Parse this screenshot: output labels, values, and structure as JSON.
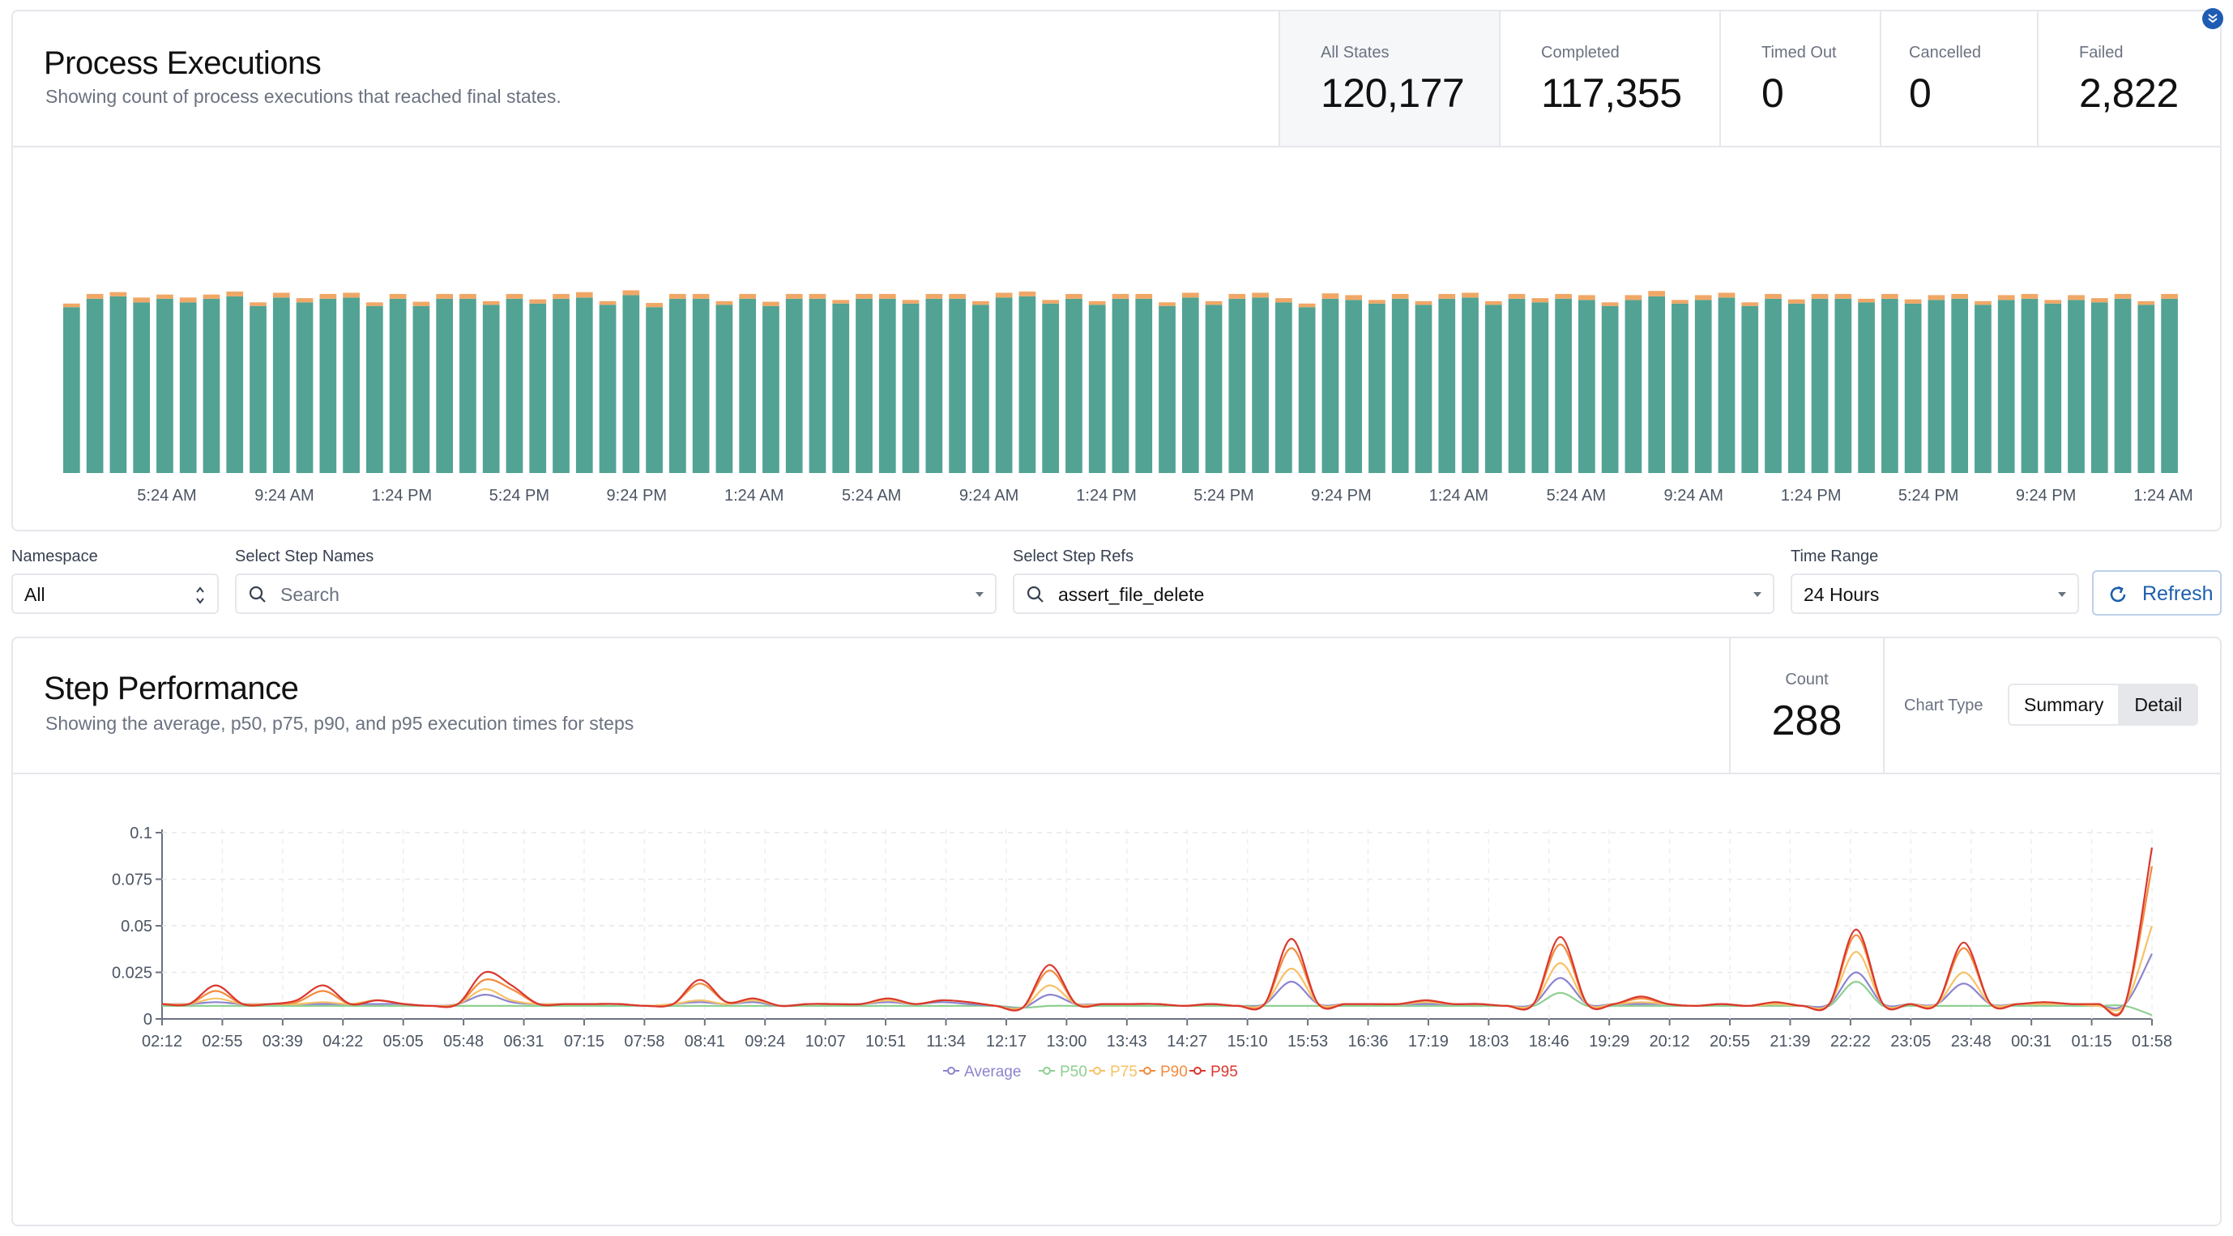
{
  "executions": {
    "title": "Process Executions",
    "subtitle": "Showing count of process executions that reached final states.",
    "stats": [
      {
        "label": "All States",
        "value": "120,177"
      },
      {
        "label": "Completed",
        "value": "117,355"
      },
      {
        "label": "Timed Out",
        "value": "0"
      },
      {
        "label": "Cancelled",
        "value": "0"
      },
      {
        "label": "Failed",
        "value": "2,822"
      }
    ]
  },
  "filters": {
    "namespace": {
      "label": "Namespace",
      "value": "All"
    },
    "step_names": {
      "label": "Select Step Names",
      "placeholder": "Search"
    },
    "step_refs": {
      "label": "Select Step Refs",
      "value": "assert_file_delete"
    },
    "time_range": {
      "label": "Time Range",
      "value": "24 Hours"
    },
    "refresh_label": "Refresh"
  },
  "performance": {
    "title": "Step Performance",
    "subtitle": "Showing the average, p50, p75, p90, and p95 execution times for steps",
    "count_label": "Count",
    "count_value": "288",
    "chart_type_label": "Chart Type",
    "chart_type_options": [
      "Summary",
      "Detail"
    ],
    "chart_type_selected": "Summary"
  },
  "colors": {
    "completed": "#52a393",
    "failed": "#f0a766",
    "average": "#8b84cf",
    "p50": "#8fcf92",
    "p75": "#f7c166",
    "p90": "#f28b3d",
    "p95": "#d9382f",
    "accent": "#1e5cb3"
  },
  "chart_data": [
    {
      "type": "bar",
      "stacked": true,
      "series": [
        {
          "name": "Completed",
          "values": [
            1380,
            1450,
            1470,
            1420,
            1450,
            1420,
            1450,
            1470,
            1390,
            1460,
            1420,
            1450,
            1460,
            1390,
            1450,
            1390,
            1450,
            1450,
            1400,
            1450,
            1410,
            1450,
            1460,
            1400,
            1480,
            1380,
            1450,
            1450,
            1400,
            1450,
            1390,
            1450,
            1450,
            1410,
            1450,
            1450,
            1410,
            1450,
            1450,
            1400,
            1460,
            1470,
            1410,
            1450,
            1400,
            1450,
            1450,
            1390,
            1460,
            1400,
            1450,
            1460,
            1420,
            1380,
            1450,
            1440,
            1410,
            1450,
            1400,
            1450,
            1460,
            1400,
            1450,
            1420,
            1450,
            1440,
            1390,
            1440,
            1470,
            1410,
            1440,
            1460,
            1390,
            1450,
            1410,
            1450,
            1450,
            1420,
            1450,
            1410,
            1440,
            1450,
            1400,
            1440,
            1450,
            1410,
            1440,
            1420,
            1450,
            1400,
            1450
          ]
        },
        {
          "name": "Failed",
          "values": [
            30,
            40,
            35,
            40,
            35,
            40,
            35,
            40,
            30,
            40,
            35,
            40,
            40,
            30,
            40,
            35,
            40,
            40,
            30,
            40,
            35,
            40,
            45,
            30,
            40,
            35,
            40,
            40,
            30,
            40,
            35,
            40,
            40,
            30,
            40,
            40,
            30,
            40,
            40,
            30,
            40,
            40,
            30,
            40,
            30,
            40,
            40,
            30,
            40,
            30,
            40,
            40,
            35,
            30,
            45,
            40,
            30,
            40,
            30,
            40,
            40,
            30,
            40,
            35,
            40,
            40,
            30,
            40,
            45,
            30,
            40,
            40,
            30,
            40,
            35,
            40,
            40,
            30,
            40,
            35,
            40,
            40,
            30,
            40,
            40,
            30,
            40,
            35,
            40,
            30,
            40
          ]
        }
      ],
      "x_ticks": [
        "5:24 AM",
        "9:24 AM",
        "1:24 PM",
        "5:24 PM",
        "9:24 PM",
        "1:24 AM",
        "5:24 AM",
        "9:24 AM",
        "1:24 PM",
        "5:24 PM",
        "9:24 PM",
        "1:24 AM",
        "5:24 AM",
        "9:24 AM",
        "1:24 PM",
        "5:24 PM",
        "9:24 PM",
        "1:24 AM"
      ],
      "ylim": [
        0,
        1550
      ]
    },
    {
      "type": "line",
      "ylim": [
        0,
        0.1
      ],
      "y_ticks": [
        "0",
        "0.025",
        "0.05",
        "0.075",
        "0.1"
      ],
      "x_ticks": [
        "02:12",
        "02:55",
        "03:39",
        "04:22",
        "05:05",
        "05:48",
        "06:31",
        "07:15",
        "07:58",
        "08:41",
        "09:24",
        "10:07",
        "10:51",
        "11:34",
        "12:17",
        "13:00",
        "13:43",
        "14:27",
        "15:10",
        "15:53",
        "16:36",
        "17:19",
        "18:03",
        "18:46",
        "19:29",
        "20:12",
        "20:55",
        "21:39",
        "22:22",
        "23:05",
        "23:48",
        "00:31",
        "01:15",
        "01:58"
      ],
      "legend": "bottom",
      "series": [
        {
          "name": "Average",
          "values": [
            0.008,
            0.008,
            0.009,
            0.008,
            0.008,
            0.008,
            0.008,
            0.008,
            0.008,
            0.008,
            0.007,
            0.008,
            0.013,
            0.009,
            0.008,
            0.008,
            0.008,
            0.008,
            0.007,
            0.008,
            0.009,
            0.008,
            0.009,
            0.007,
            0.008,
            0.008,
            0.008,
            0.009,
            0.008,
            0.009,
            0.008,
            0.007,
            0.006,
            0.013,
            0.008,
            0.008,
            0.008,
            0.008,
            0.007,
            0.008,
            0.007,
            0.008,
            0.02,
            0.008,
            0.008,
            0.008,
            0.008,
            0.008,
            0.008,
            0.008,
            0.007,
            0.008,
            0.022,
            0.008,
            0.008,
            0.008,
            0.008,
            0.007,
            0.008,
            0.007,
            0.008,
            0.007,
            0.008,
            0.025,
            0.008,
            0.008,
            0.008,
            0.019,
            0.008,
            0.008,
            0.008,
            0.008,
            0.007,
            0.008,
            0.035
          ]
        },
        {
          "name": "P50",
          "values": [
            0.007,
            0.007,
            0.007,
            0.007,
            0.007,
            0.007,
            0.007,
            0.007,
            0.007,
            0.007,
            0.007,
            0.007,
            0.007,
            0.007,
            0.007,
            0.007,
            0.007,
            0.007,
            0.007,
            0.007,
            0.007,
            0.007,
            0.007,
            0.007,
            0.007,
            0.007,
            0.007,
            0.007,
            0.007,
            0.007,
            0.007,
            0.007,
            0.006,
            0.007,
            0.007,
            0.007,
            0.007,
            0.007,
            0.007,
            0.007,
            0.007,
            0.007,
            0.007,
            0.007,
            0.007,
            0.007,
            0.007,
            0.007,
            0.007,
            0.007,
            0.007,
            0.007,
            0.014,
            0.007,
            0.007,
            0.007,
            0.007,
            0.007,
            0.007,
            0.007,
            0.007,
            0.007,
            0.007,
            0.02,
            0.007,
            0.007,
            0.007,
            0.007,
            0.007,
            0.007,
            0.007,
            0.007,
            0.007,
            0.007,
            0.002
          ]
        },
        {
          "name": "P75",
          "values": [
            0.008,
            0.008,
            0.011,
            0.008,
            0.008,
            0.008,
            0.009,
            0.008,
            0.01,
            0.008,
            0.007,
            0.008,
            0.016,
            0.01,
            0.008,
            0.008,
            0.008,
            0.008,
            0.007,
            0.008,
            0.01,
            0.008,
            0.01,
            0.007,
            0.008,
            0.008,
            0.008,
            0.01,
            0.008,
            0.01,
            0.009,
            0.007,
            0.006,
            0.018,
            0.008,
            0.008,
            0.008,
            0.008,
            0.007,
            0.008,
            0.007,
            0.008,
            0.027,
            0.008,
            0.008,
            0.008,
            0.008,
            0.009,
            0.008,
            0.008,
            0.007,
            0.008,
            0.03,
            0.008,
            0.008,
            0.009,
            0.008,
            0.007,
            0.008,
            0.007,
            0.008,
            0.007,
            0.008,
            0.036,
            0.008,
            0.008,
            0.008,
            0.025,
            0.008,
            0.008,
            0.008,
            0.008,
            0.007,
            0.008,
            0.05
          ]
        },
        {
          "name": "P90",
          "values": [
            0.008,
            0.008,
            0.015,
            0.008,
            0.008,
            0.009,
            0.015,
            0.008,
            0.01,
            0.008,
            0.007,
            0.008,
            0.021,
            0.016,
            0.008,
            0.008,
            0.008,
            0.008,
            0.007,
            0.008,
            0.019,
            0.009,
            0.011,
            0.007,
            0.008,
            0.008,
            0.008,
            0.011,
            0.008,
            0.01,
            0.009,
            0.007,
            0.006,
            0.026,
            0.008,
            0.008,
            0.008,
            0.008,
            0.007,
            0.008,
            0.007,
            0.008,
            0.038,
            0.008,
            0.008,
            0.008,
            0.008,
            0.01,
            0.008,
            0.008,
            0.007,
            0.008,
            0.04,
            0.008,
            0.008,
            0.011,
            0.008,
            0.007,
            0.008,
            0.007,
            0.009,
            0.007,
            0.008,
            0.045,
            0.008,
            0.008,
            0.008,
            0.038,
            0.008,
            0.008,
            0.009,
            0.008,
            0.008,
            0.008,
            0.082
          ]
        },
        {
          "name": "P95",
          "values": [
            0.008,
            0.008,
            0.018,
            0.008,
            0.008,
            0.01,
            0.018,
            0.008,
            0.01,
            0.008,
            0.007,
            0.008,
            0.025,
            0.018,
            0.008,
            0.008,
            0.008,
            0.008,
            0.007,
            0.008,
            0.021,
            0.009,
            0.011,
            0.007,
            0.008,
            0.008,
            0.008,
            0.011,
            0.008,
            0.01,
            0.009,
            0.007,
            0.006,
            0.029,
            0.008,
            0.008,
            0.008,
            0.008,
            0.007,
            0.008,
            0.007,
            0.008,
            0.043,
            0.008,
            0.008,
            0.008,
            0.008,
            0.01,
            0.008,
            0.008,
            0.007,
            0.008,
            0.044,
            0.008,
            0.008,
            0.012,
            0.008,
            0.007,
            0.008,
            0.007,
            0.009,
            0.007,
            0.008,
            0.048,
            0.008,
            0.008,
            0.008,
            0.041,
            0.008,
            0.008,
            0.009,
            0.008,
            0.008,
            0.008,
            0.092
          ]
        }
      ]
    }
  ]
}
